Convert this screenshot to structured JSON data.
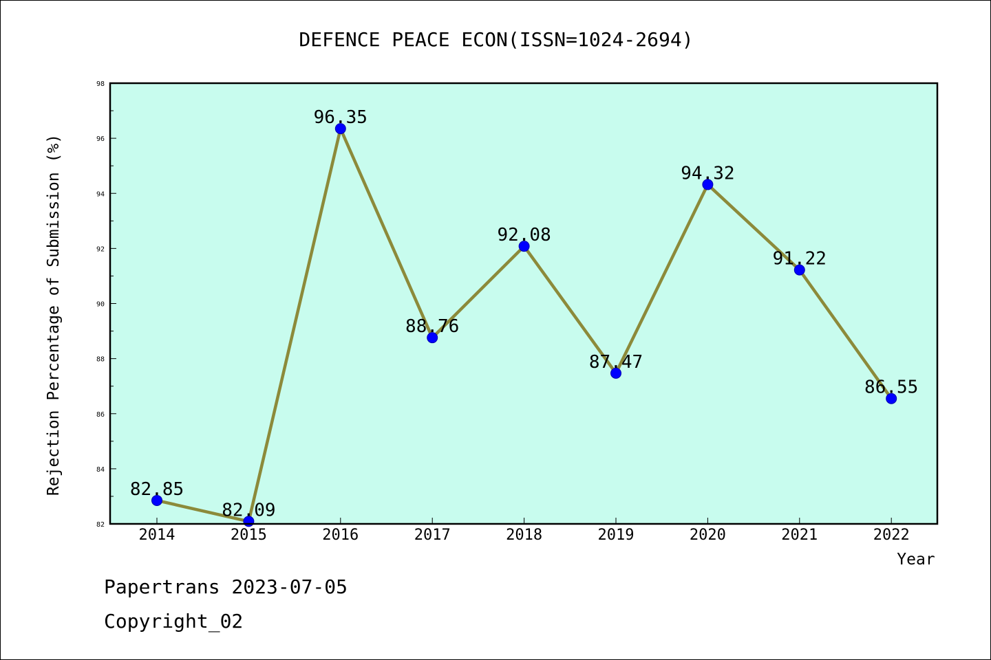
{
  "footer": {
    "line1": "Papertrans 2023-07-05",
    "line2": "Copyright_02"
  },
  "chart_data": {
    "type": "line",
    "title": "DEFENCE PEACE ECON(ISSN=1024-2694)",
    "xlabel": "Year",
    "ylabel": "Rejection Percentage of Submission (%)",
    "ylim": [
      82,
      98
    ],
    "y_ticks": [
      82,
      84,
      86,
      88,
      90,
      92,
      94,
      96,
      98
    ],
    "categories": [
      "2014",
      "2015",
      "2016",
      "2017",
      "2018",
      "2019",
      "2020",
      "2021",
      "2022"
    ],
    "values": [
      82.85,
      82.09,
      96.35,
      88.76,
      92.08,
      87.47,
      94.32,
      91.22,
      86.55
    ],
    "value_labels": [
      "82.85",
      "82.09",
      "96.35",
      "88.76",
      "92.08",
      "87.47",
      "94.32",
      "91.22",
      "86.55"
    ],
    "grid": false,
    "colors": {
      "plot_background": "#c8fcee",
      "line": "#8c8a3a",
      "marker": "#0000ff"
    }
  }
}
